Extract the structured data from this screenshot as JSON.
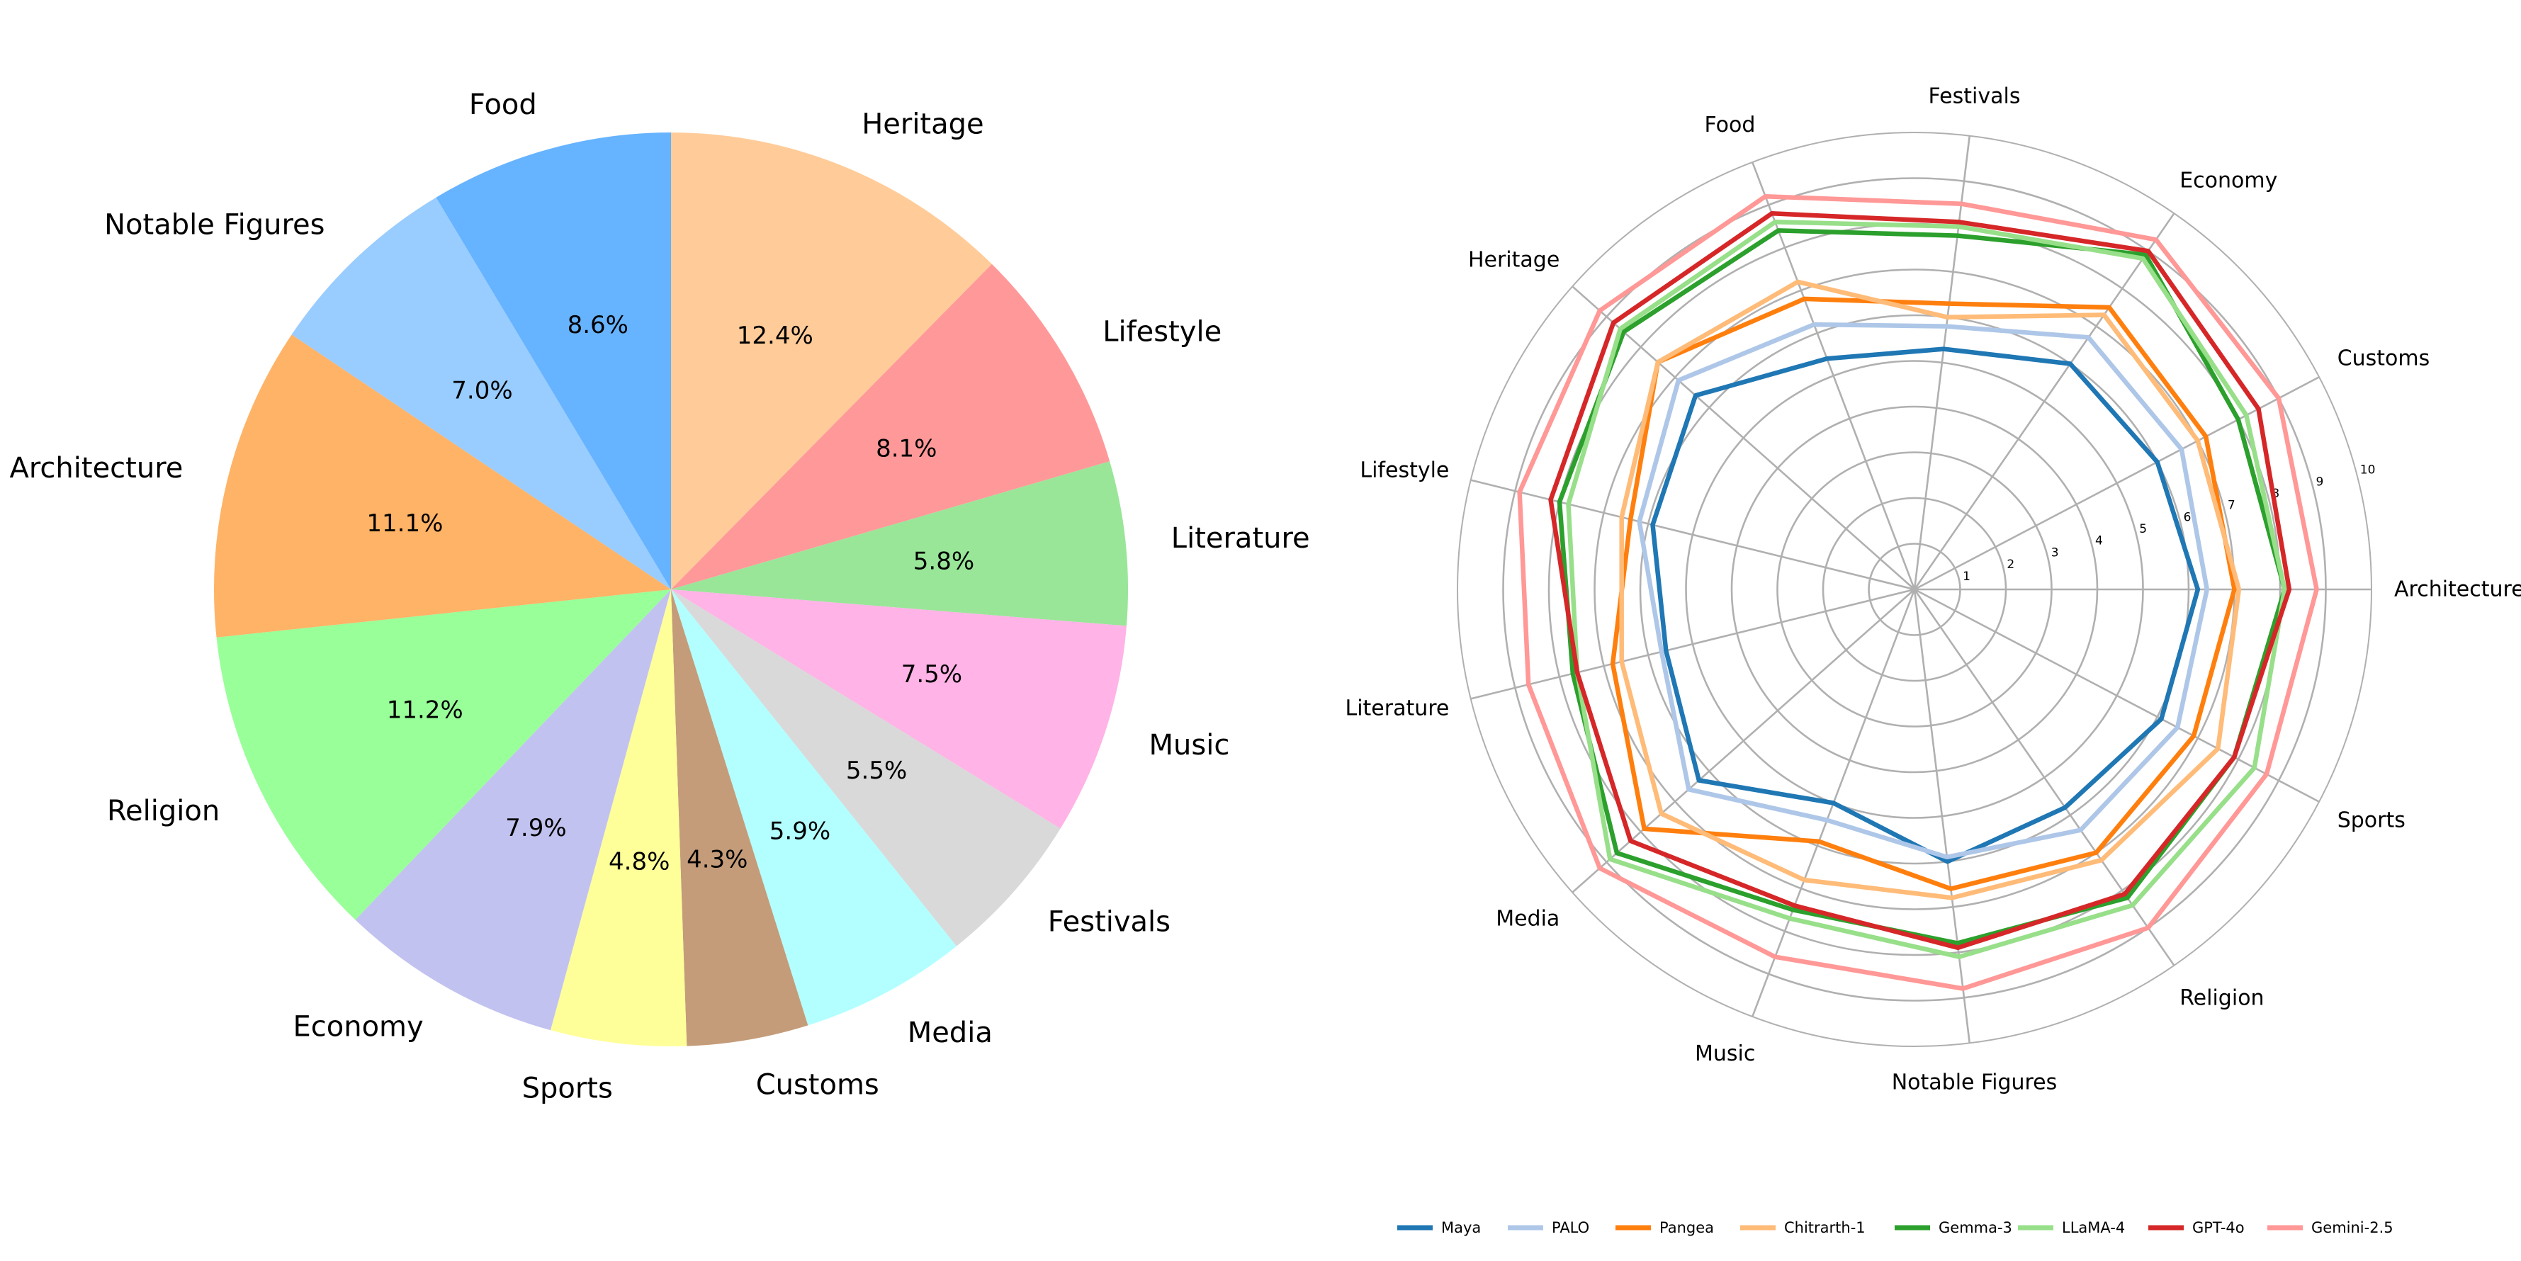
{
  "chart_data": [
    {
      "type": "pie",
      "title": "",
      "categories": [
        "Heritage",
        "Lifestyle",
        "Literature",
        "Music",
        "Festivals",
        "Media",
        "Customs",
        "Sports",
        "Economy",
        "Religion",
        "Architecture",
        "Notable Figures",
        "Food"
      ],
      "values": [
        12.4,
        8.1,
        5.8,
        7.5,
        5.5,
        5.9,
        4.3,
        4.8,
        7.9,
        11.2,
        11.1,
        7.0,
        8.6
      ],
      "value_labels": [
        "12.4%",
        "8.1%",
        "5.8%",
        "7.5%",
        "5.5%",
        "5.9%",
        "4.3%",
        "4.8%",
        "7.9%",
        "11.2%",
        "11.1%",
        "7.0%",
        "8.6%"
      ],
      "colors": [
        "#ffcc99",
        "#ff9999",
        "#99e699",
        "#ffb3e6",
        "#d9d9d9",
        "#b3ffff",
        "#c49c7a",
        "#ffff99",
        "#c2c2f0",
        "#99ff99",
        "#ffb366",
        "#99ccff",
        "#66b3ff"
      ],
      "start_angle_deg": 90,
      "direction": "clockwise"
    },
    {
      "type": "radar",
      "title": "",
      "axes": [
        "Architecture",
        "Customs",
        "Economy",
        "Festivals",
        "Food",
        "Heritage",
        "Lifestyle",
        "Literature",
        "Media",
        "Music",
        "Notable Figures",
        "Religion",
        "Sports"
      ],
      "r_ticks": [
        "1",
        "2",
        "3",
        "4",
        "5",
        "6",
        "7",
        "8",
        "9",
        "10"
      ],
      "r_range": [
        0,
        10
      ],
      "series": [
        {
          "name": "Maya",
          "color": "#1f77b4",
          "values": [
            6.2,
            6.0,
            6.0,
            5.3,
            5.4,
            6.4,
            5.9,
            5.6,
            6.3,
            5.0,
            6.0,
            5.8,
            6.1
          ]
        },
        {
          "name": "PALO",
          "color": "#aec7e8",
          "values": [
            6.4,
            6.6,
            6.7,
            5.8,
            6.2,
            6.9,
            6.2,
            5.7,
            6.6,
            5.4,
            5.9,
            6.4,
            6.5
          ]
        },
        {
          "name": "Pangea",
          "color": "#ff7f0e",
          "values": [
            7.0,
            7.2,
            7.5,
            6.3,
            6.8,
            7.5,
            6.4,
            6.8,
            7.9,
            5.9,
            6.6,
            7.0,
            6.9
          ]
        },
        {
          "name": "Chitrarth-1",
          "color": "#ffbb78",
          "values": [
            7.1,
            7.0,
            7.3,
            6.0,
            7.2,
            7.5,
            6.6,
            6.6,
            7.4,
            6.8,
            6.8,
            7.2,
            7.5
          ]
        },
        {
          "name": "Gemma-3",
          "color": "#2ca02c",
          "values": [
            8.1,
            8.0,
            8.9,
            7.8,
            8.4,
            8.5,
            8.0,
            7.7,
            8.7,
            7.5,
            7.8,
            8.2,
            7.9
          ]
        },
        {
          "name": "LLaMA-4",
          "color": "#98df8a",
          "values": [
            8.1,
            8.2,
            8.8,
            8.0,
            8.6,
            8.6,
            7.8,
            7.6,
            8.9,
            7.7,
            8.1,
            8.4,
            8.4
          ]
        },
        {
          "name": "GPT-4o",
          "color": "#d62728",
          "values": [
            8.2,
            8.5,
            9.0,
            8.1,
            8.8,
            8.8,
            8.2,
            7.6,
            8.3,
            7.4,
            7.9,
            8.1,
            7.9
          ]
        },
        {
          "name": "Gemini-2.5",
          "color": "#ff9896",
          "values": [
            8.8,
            9.0,
            9.3,
            8.5,
            9.2,
            9.2,
            8.9,
            8.7,
            9.2,
            8.6,
            8.8,
            9.0,
            8.7
          ]
        }
      ],
      "legend": "bottom"
    }
  ]
}
